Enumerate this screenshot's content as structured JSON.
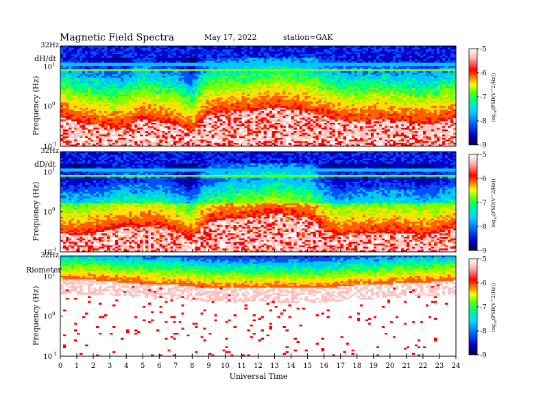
{
  "header": {
    "title": "Magnetic  Field  Spectra",
    "date": "May 17, 2022",
    "station": "station=GAK"
  },
  "chart_data": [
    {
      "type": "heatmap",
      "panel": "dH/dt",
      "ylabel": "Frequency  (Hz)",
      "top_label": "32Hz",
      "ytick_labels": [
        {
          "label": "10",
          "exp": "1",
          "value": 10
        },
        {
          "label": "10",
          "exp": "0",
          "value": 1
        },
        {
          "label": "10",
          "exp": "-1",
          "value": 0.1
        }
      ],
      "y_scale": "log",
      "ylim": [
        0.1,
        32
      ],
      "xlim": [
        0,
        24
      ],
      "colorbar": {
        "label": "log10(PSD(V^2/Hz))",
        "label_prefix": "log",
        "label_sub": "10",
        "label_rest": "(PSD(V^2/Hz))",
        "ticks": [
          "-5",
          "-6",
          "-7",
          "-8",
          "-9"
        ],
        "range": [
          -9,
          -5
        ]
      },
      "noise_floor_hz": [
        0.55,
        0.4,
        0.35,
        0.3,
        0.3,
        0.5,
        0.4,
        0.35,
        0.2,
        0.6,
        0.7,
        0.75,
        0.8,
        0.95,
        0.85,
        0.75,
        0.55,
        0.45,
        0.4,
        0.45,
        0.45,
        0.4,
        0.35,
        0.4,
        0.5
      ]
    },
    {
      "type": "heatmap",
      "panel": "dD/dt",
      "ylabel": "Frequency  (Hz)",
      "top_label": "32Hz",
      "ytick_labels": [
        {
          "label": "10",
          "exp": "1",
          "value": 10
        },
        {
          "label": "10",
          "exp": "0",
          "value": 1
        },
        {
          "label": "10",
          "exp": "-1",
          "value": 0.1
        }
      ],
      "y_scale": "log",
      "ylim": [
        0.1,
        32
      ],
      "xlim": [
        0,
        24
      ],
      "colorbar": {
        "label": "log10(PSD(V^2/Hz))",
        "label_prefix": "log",
        "label_sub": "10",
        "label_rest": "(PSD(V^2/Hz))",
        "ticks": [
          "-5",
          "-6",
          "-7",
          "-8",
          "-9"
        ],
        "range": [
          -9,
          -5
        ]
      },
      "noise_floor_hz": [
        0.3,
        0.25,
        0.3,
        0.35,
        0.45,
        0.4,
        0.45,
        0.3,
        0.2,
        0.55,
        0.65,
        0.7,
        0.75,
        0.95,
        0.8,
        0.75,
        0.35,
        0.25,
        0.3,
        0.3,
        0.3,
        0.3,
        0.25,
        0.3,
        0.4
      ]
    },
    {
      "type": "heatmap",
      "panel": "Riometer",
      "ylabel": "Frequency  (Hz)",
      "top_label": "32Hz",
      "ytick_labels": [
        {
          "label": "10",
          "exp": "1",
          "value": 10
        },
        {
          "label": "10",
          "exp": "0",
          "value": 1
        },
        {
          "label": "10",
          "exp": "-1",
          "value": 0.1
        }
      ],
      "y_scale": "log",
      "ylim": [
        0.1,
        32
      ],
      "xlim": [
        0,
        24
      ],
      "colorbar": {
        "label": "log10(PSD(V^2/Hz))",
        "label_prefix": "log",
        "label_sub": "10",
        "label_rest": "(PSD(V^2/Hz))",
        "ticks": [
          "-5",
          "-6",
          "-7",
          "-8",
          "-9"
        ],
        "range": [
          -9,
          -5
        ]
      },
      "noise_floor_hz": [
        8,
        8,
        8,
        7.5,
        7,
        6.5,
        6,
        6,
        5.5,
        5,
        5,
        5,
        5,
        5,
        5,
        5,
        5,
        5.5,
        6,
        6,
        6.5,
        7,
        7,
        7.5,
        8
      ]
    }
  ],
  "xaxis": {
    "label": "Universal Time",
    "ticks": [
      "0",
      "1",
      "2",
      "3",
      "4",
      "5",
      "6",
      "7",
      "8",
      "9",
      "10",
      "11",
      "12",
      "13",
      "14",
      "15",
      "16",
      "17",
      "18",
      "19",
      "20",
      "21",
      "22",
      "23",
      "24"
    ]
  },
  "colors": {
    "colormap": [
      "#000060",
      "#0000c8",
      "#0050ff",
      "#00c8ff",
      "#00ff80",
      "#80ff00",
      "#ffe000",
      "#ff6000",
      "#ff0000",
      "#ffc0c0",
      "#ffffff"
    ]
  }
}
